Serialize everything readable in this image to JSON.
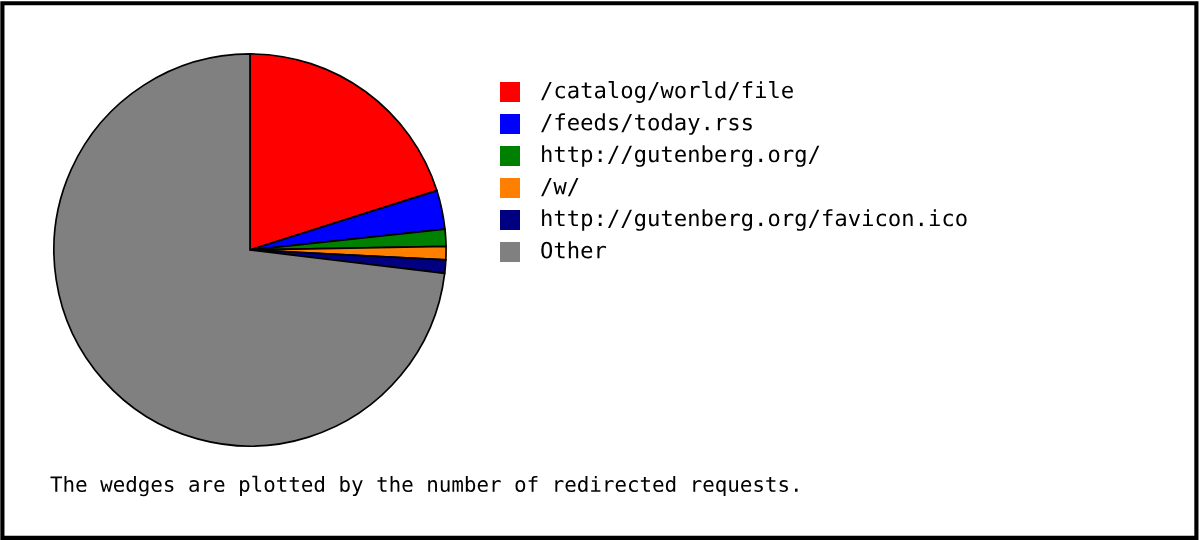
{
  "chart_data": {
    "type": "pie",
    "categories": [
      "/catalog/world/file",
      "/feeds/today.rss",
      "http://gutenberg.org/",
      "/w/",
      "http://gutenberg.org/favicon.ico",
      "Other"
    ],
    "values": [
      20.1,
      3.2,
      1.4,
      1.1,
      1.1,
      73.1
    ],
    "colors": [
      "#ff0000",
      "#0000ff",
      "#008000",
      "#ff8000",
      "#000080",
      "#808080"
    ],
    "legend": "right",
    "annotations": [
      "The wedges are plotted by the number of redirected requests."
    ]
  }
}
